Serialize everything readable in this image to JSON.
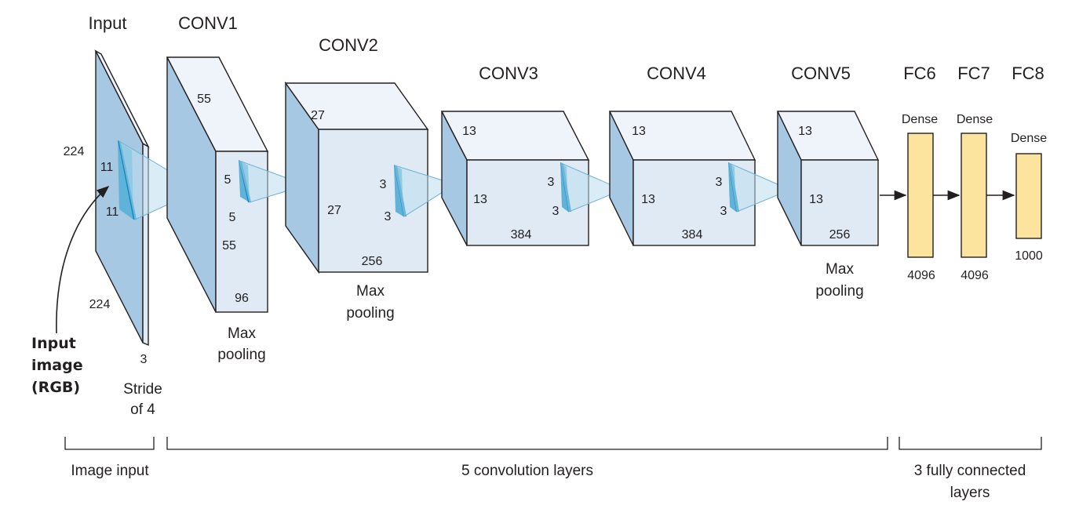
{
  "titles": {
    "input": "Input",
    "conv1": "CONV1",
    "conv2": "CONV2",
    "conv3": "CONV3",
    "conv4": "CONV4",
    "conv5": "CONV5",
    "fc6": "FC6",
    "fc7": "FC7",
    "fc8": "FC8"
  },
  "input_layer": {
    "height_label": "224",
    "width_label": "224",
    "depth_label": "3",
    "kernel_h": "11",
    "kernel_w": "11",
    "stride": [
      "Stride",
      "of 4"
    ],
    "image_label": [
      "Input",
      "image",
      "(RGB)"
    ]
  },
  "conv1": {
    "size_top": "55",
    "size_side": "55",
    "depth": "96",
    "kernel_h": "5",
    "kernel_w": "5",
    "pool": [
      "Max",
      "pooling"
    ]
  },
  "conv2": {
    "size_top": "27",
    "size_side": "27",
    "depth": "256",
    "kernel_h": "3",
    "kernel_w": "3",
    "pool": [
      "Max",
      "pooling"
    ]
  },
  "conv3": {
    "size_top": "13",
    "size_side": "13",
    "depth": "384",
    "kernel_h": "3",
    "kernel_w": "3"
  },
  "conv4": {
    "size_top": "13",
    "size_side": "13",
    "depth": "384",
    "kernel_h": "3",
    "kernel_w": "3"
  },
  "conv5": {
    "size_top": "13",
    "size_side": "13",
    "depth": "256",
    "pool": [
      "Max",
      "pooling"
    ]
  },
  "fc6": {
    "type": "Dense",
    "units": "4096"
  },
  "fc7": {
    "type": "Dense",
    "units": "4096"
  },
  "fc8": {
    "type": "Dense",
    "units": "1000"
  },
  "groups": {
    "image_input": "Image input",
    "conv_layers": "5 convolution layers",
    "fc_layers": [
      "3 fully connected",
      "layers"
    ]
  }
}
